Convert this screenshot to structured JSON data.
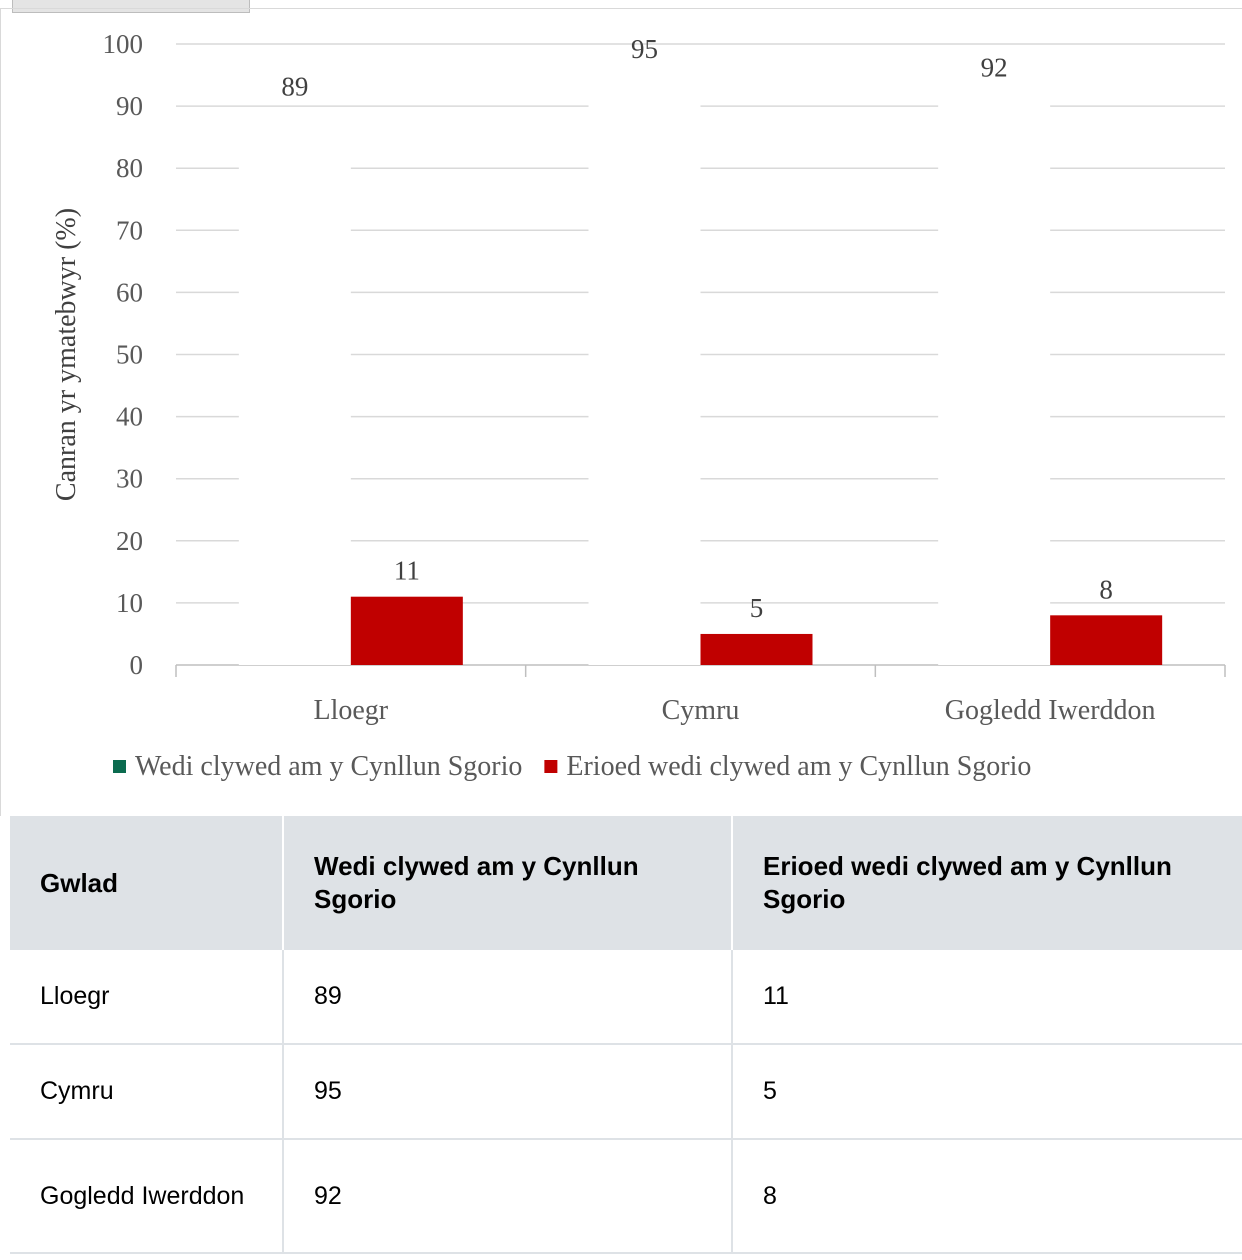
{
  "chart_data": {
    "type": "bar",
    "title": "",
    "xlabel": "",
    "ylabel": "Canran yr ymatebwyr (%)",
    "ylim": [
      0,
      100
    ],
    "yticks": [
      0,
      10,
      20,
      30,
      40,
      50,
      60,
      70,
      80,
      90,
      100
    ],
    "grid": true,
    "legend_position": "bottom",
    "categories": [
      "Lloegr",
      "Cymru",
      "Gogledd Iwerddon"
    ],
    "series": [
      {
        "name": "Wedi clywed am y Cynllun Sgorio",
        "values": [
          89,
          95,
          92
        ],
        "color": "#ffffff",
        "legend_color": "#0b6b4f"
      },
      {
        "name": "Erioed wedi clywed am y Cynllun Sgorio",
        "values": [
          11,
          5,
          8
        ],
        "color": "#c00000",
        "legend_color": "#c00000"
      }
    ]
  },
  "table": {
    "headers": [
      "Gwlad",
      "Wedi clywed am y Cynllun Sgorio",
      "Erioed wedi clywed am y Cynllun Sgorio"
    ],
    "rows": [
      [
        "Lloegr",
        "89",
        "11"
      ],
      [
        "Cymru",
        "95",
        "5"
      ],
      [
        "Gogledd Iwerddon",
        "92",
        "8"
      ]
    ]
  }
}
